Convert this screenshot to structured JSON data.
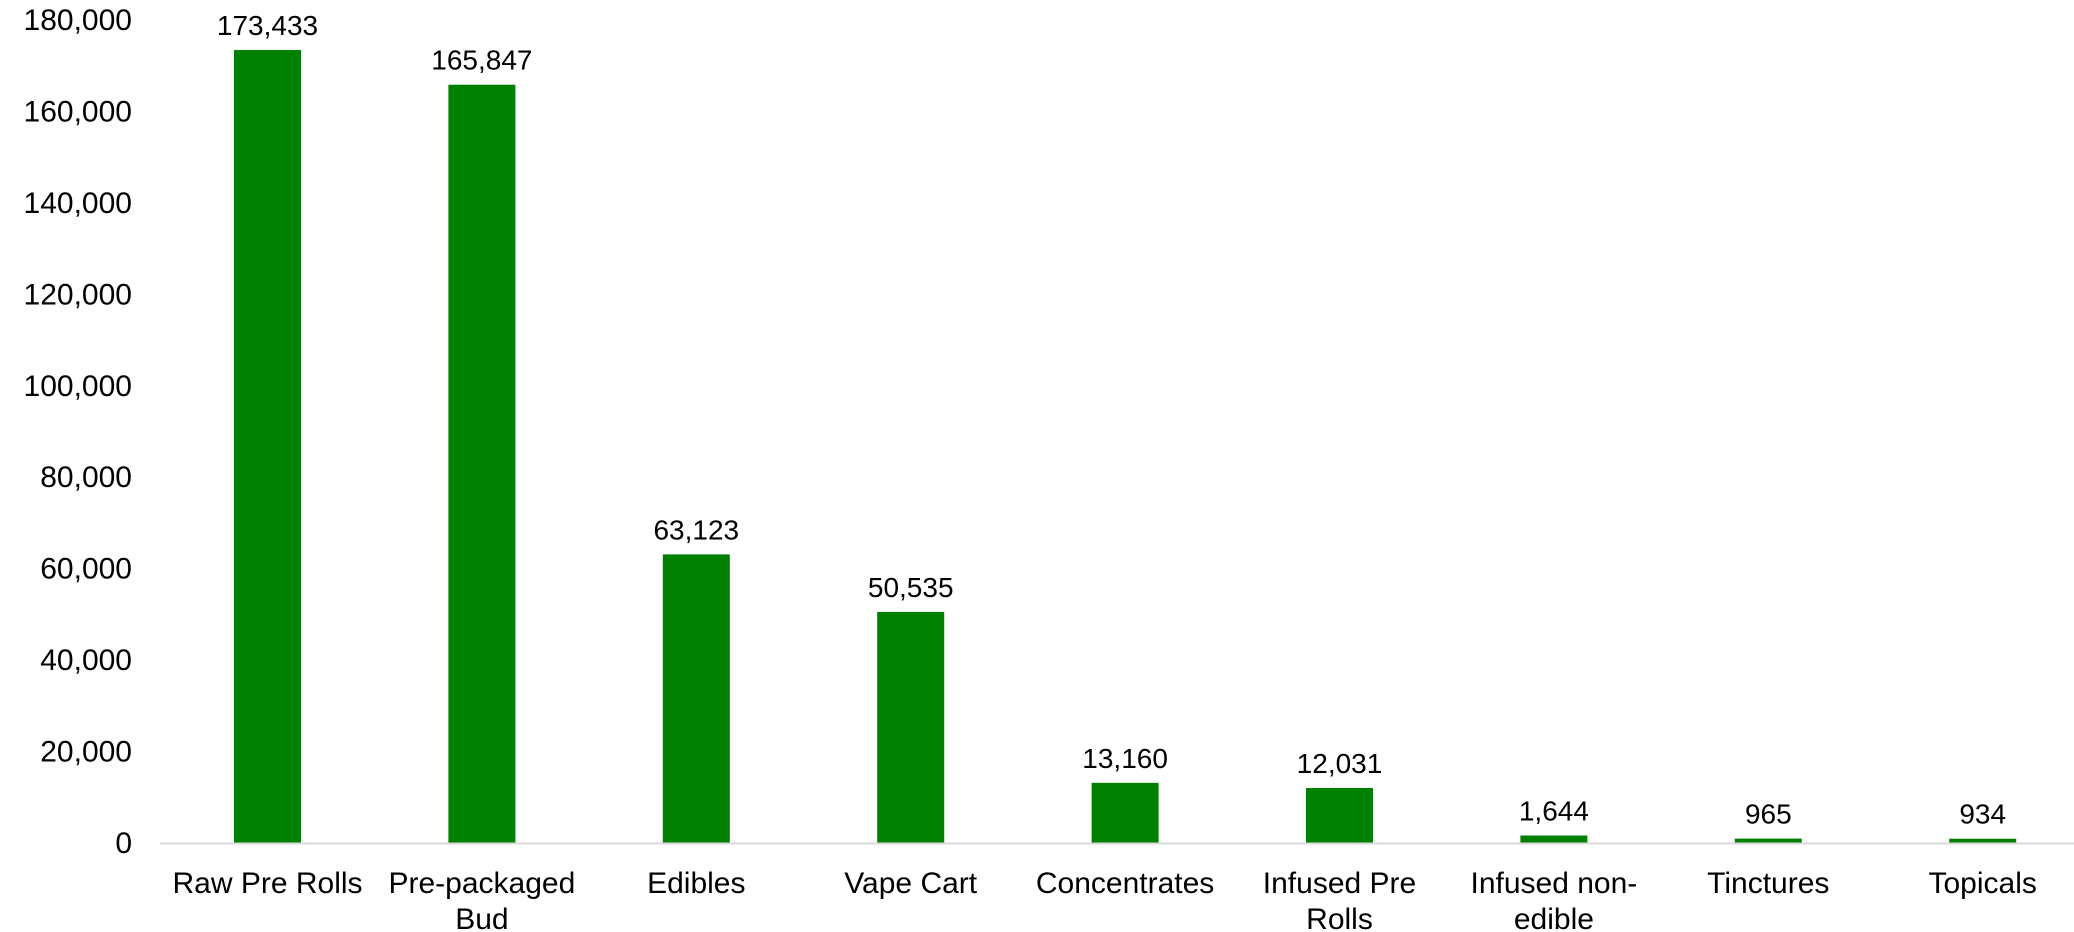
{
  "chart_data": {
    "type": "bar",
    "title": "",
    "xlabel": "",
    "ylabel": "",
    "categories": [
      "Raw Pre Rolls",
      "Pre-packaged Bud",
      "Edibles",
      "Vape Cart",
      "Concentrates",
      "Infused Pre Rolls",
      "Infused non-edible",
      "Tinctures",
      "Topicals"
    ],
    "category_label_lines": [
      [
        "Raw Pre Rolls"
      ],
      [
        "Pre-packaged",
        "Bud"
      ],
      [
        "Edibles"
      ],
      [
        "Vape Cart"
      ],
      [
        "Concentrates"
      ],
      [
        "Infused Pre",
        "Rolls"
      ],
      [
        "Infused non-",
        "edible"
      ],
      [
        "Tinctures"
      ],
      [
        "Topicals"
      ]
    ],
    "values": [
      173433,
      165847,
      63123,
      50535,
      13160,
      12031,
      1644,
      965,
      934
    ],
    "data_labels": [
      "173,433",
      "165,847",
      "63,123",
      "50,535",
      "13,160",
      "12,031",
      "1,644",
      "965",
      "934"
    ],
    "ylim": [
      0,
      180000
    ],
    "yticks": [
      0,
      20000,
      40000,
      60000,
      80000,
      100000,
      120000,
      140000,
      160000,
      180000
    ],
    "ytick_labels": [
      "0",
      "20,000",
      "40,000",
      "60,000",
      "80,000",
      "100,000",
      "120,000",
      "140,000",
      "160,000",
      "180,000"
    ],
    "grid": false,
    "legend": "none",
    "colors": {
      "bar": "#008000",
      "axis": "#d9d9d9",
      "text": "#000000"
    }
  }
}
